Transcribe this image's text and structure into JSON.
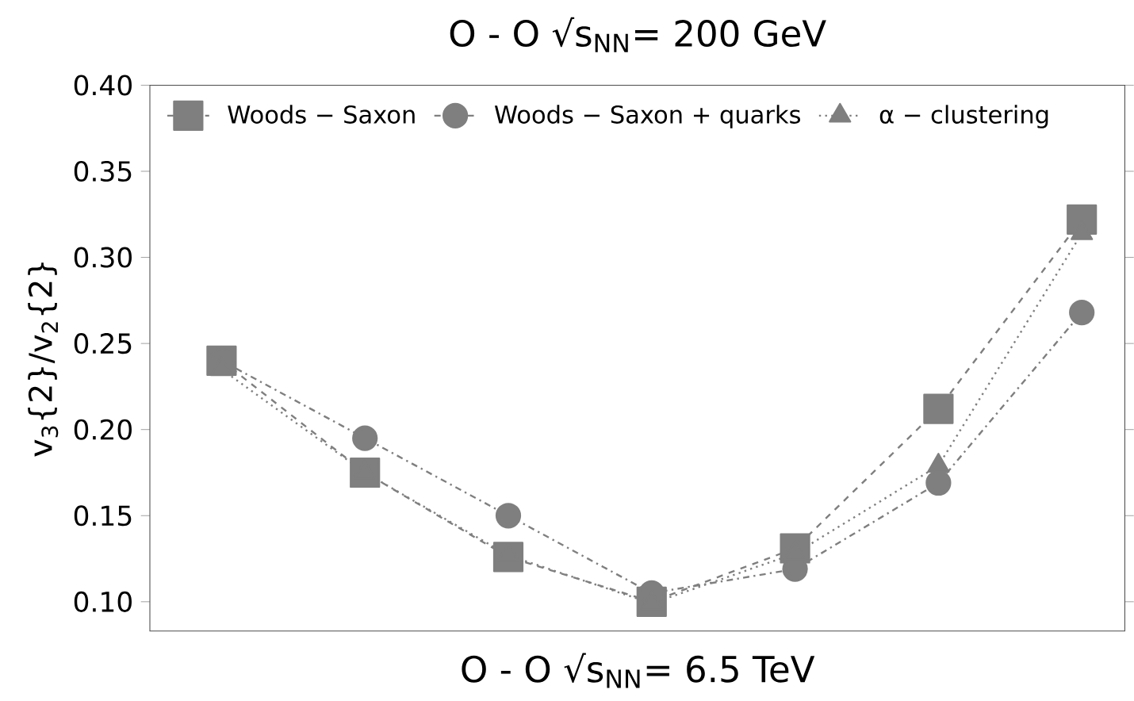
{
  "chart_data": {
    "type": "line",
    "title": "O - O √s$_{NN}$= 200 GeV",
    "xlabel": "O - O √s$_{NN}$= 6.5 TeV",
    "ylabel": "v$_{3}${2}/v$_{2}${2}",
    "categories": [
      null,
      null,
      null,
      null,
      null,
      null,
      null
    ],
    "ylim": [
      0.083,
      0.4
    ],
    "yticks": [
      {
        "value": 0.1,
        "label": "0.10"
      },
      0.15,
      {
        "value": 0.2,
        "label": "0.20"
      },
      0.25,
      {
        "value": 0.3,
        "label": "0.30"
      },
      0.35,
      {
        "value": 0.4,
        "label": "0.40"
      }
    ],
    "tick_labels": "y",
    "legend": "top left",
    "grid": false,
    "series": [
      {
        "name": "Woods − Saxon",
        "color": "#7f7f7f",
        "marker": "square",
        "line_style": "dashed",
        "values": [
          0.24,
          0.175,
          0.126,
          0.1,
          0.131,
          0.212,
          0.322
        ]
      },
      {
        "name": "Woods − Saxon + quarks",
        "color": "#7f7f7f",
        "marker": "circle",
        "line_style": "dashdot",
        "values": [
          0.24,
          0.195,
          0.15,
          0.105,
          0.119,
          0.169,
          0.268
        ]
      },
      {
        "name": "α − clustering",
        "color": "#7f7f7f",
        "marker": "triangle",
        "line_style": "dotted",
        "values": [
          0.235,
          0.175,
          0.127,
          0.099,
          0.128,
          0.179,
          0.314
        ]
      }
    ]
  }
}
